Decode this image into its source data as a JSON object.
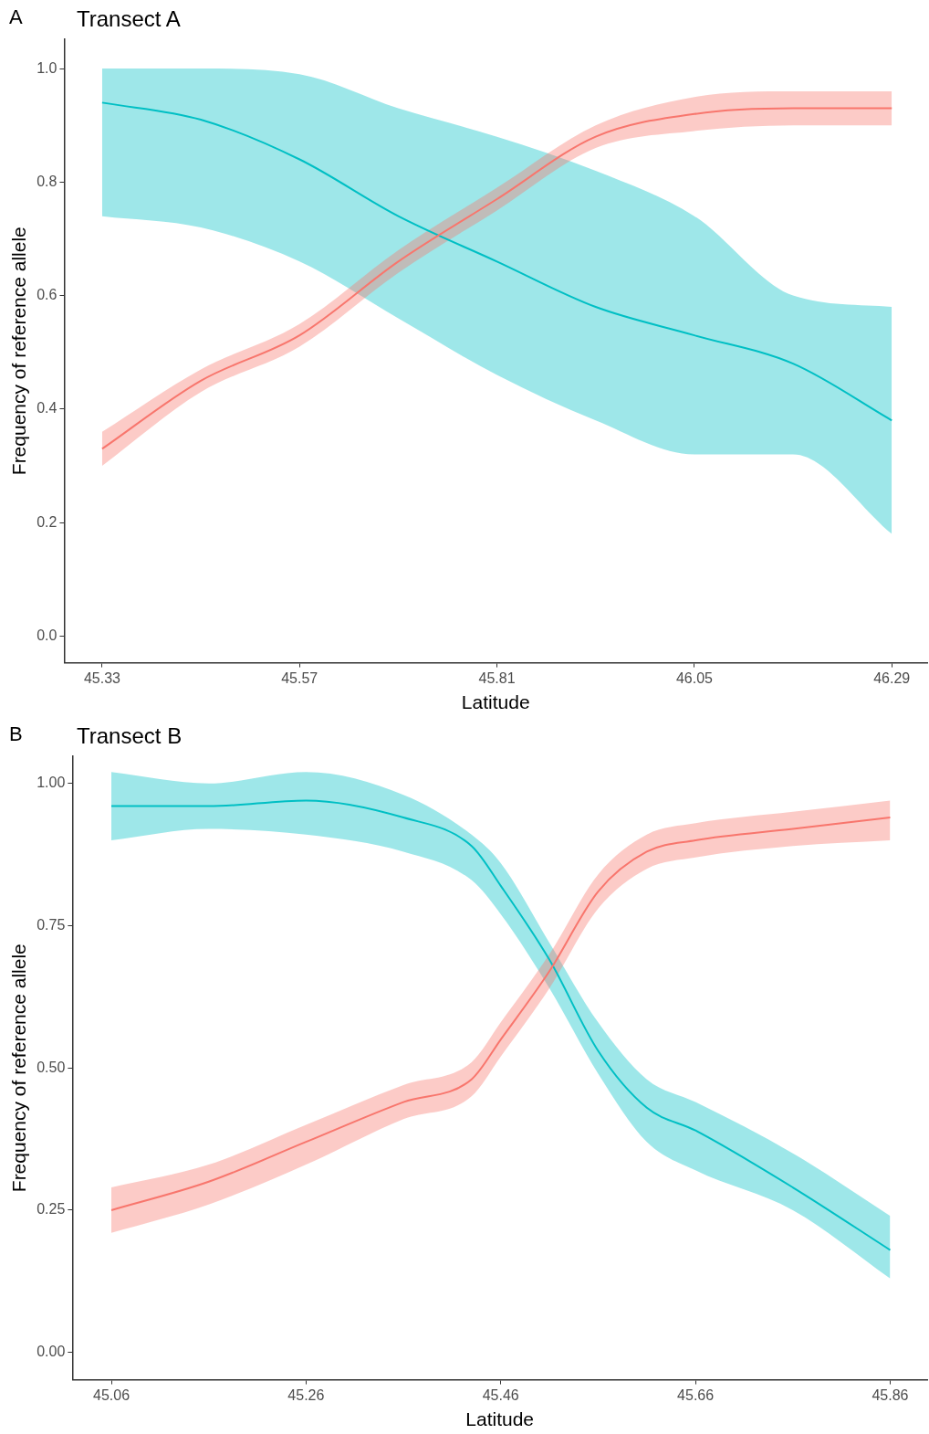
{
  "chart_data": [
    {
      "type": "line",
      "title": "Transect A",
      "xlabel": "Latitude",
      "ylabel": "Frequency of reference allele",
      "annotations": [
        "A"
      ],
      "grid": false,
      "legend": false,
      "xlim": [
        45.284,
        46.333
      ],
      "ylim": [
        -0.047,
        1.052
      ],
      "xticks": [
        45.33,
        45.57,
        45.81,
        46.05,
        46.29
      ],
      "yticks": [
        {
          "value": 0,
          "label": "0.0"
        },
        0.2,
        0.4,
        0.6,
        0.8,
        {
          "value": 1,
          "label": "1.0"
        }
      ],
      "x": [
        45.33,
        45.45,
        45.57,
        45.69,
        45.81,
        45.93,
        46.05,
        46.17,
        46.29
      ],
      "series": [
        {
          "color": "#f8766d",
          "values": [
            0.33,
            0.45,
            0.53,
            0.66,
            0.77,
            0.88,
            0.92,
            0.93,
            0.93
          ],
          "lower": [
            0.3,
            0.43,
            0.51,
            0.64,
            0.75,
            0.86,
            0.89,
            0.9,
            0.9
          ],
          "upper": [
            0.36,
            0.47,
            0.55,
            0.68,
            0.79,
            0.9,
            0.95,
            0.96,
            0.96
          ]
        },
        {
          "color": "#00bfc4",
          "values": [
            0.94,
            0.91,
            0.84,
            0.74,
            0.66,
            0.58,
            0.53,
            0.48,
            0.38
          ],
          "lower": [
            0.74,
            0.72,
            0.66,
            0.56,
            0.46,
            0.38,
            0.32,
            0.32,
            0.18
          ],
          "upper": [
            1,
            1,
            0.99,
            0.93,
            0.88,
            0.82,
            0.74,
            0.6,
            0.58
          ]
        }
      ]
    },
    {
      "type": "line",
      "title": "Transect B",
      "xlabel": "Latitude",
      "ylabel": "Frequency of reference allele",
      "annotations": [
        "B"
      ],
      "grid": false,
      "legend": false,
      "xlim": [
        45.02,
        45.898
      ],
      "ylim": [
        -0.048,
        1.048
      ],
      "xticks": [
        45.06,
        45.26,
        45.46,
        45.66,
        45.86
      ],
      "yticks": [
        {
          "value": 0,
          "label": "0.00"
        },
        0.25,
        {
          "value": 0.5,
          "label": "0.50"
        },
        0.75,
        {
          "value": 1,
          "label": "1.00"
        }
      ],
      "x": [
        45.06,
        45.16,
        45.26,
        45.36,
        45.43,
        45.46,
        45.51,
        45.56,
        45.61,
        45.66,
        45.76,
        45.86
      ],
      "series": [
        {
          "color": "#f8766d",
          "values": [
            0.25,
            0.3,
            0.37,
            0.44,
            0.48,
            0.55,
            0.67,
            0.81,
            0.88,
            0.9,
            0.92,
            0.94
          ],
          "lower": [
            0.21,
            0.26,
            0.33,
            0.41,
            0.45,
            0.52,
            0.64,
            0.78,
            0.85,
            0.87,
            0.89,
            0.9
          ],
          "upper": [
            0.29,
            0.33,
            0.4,
            0.47,
            0.51,
            0.58,
            0.7,
            0.84,
            0.91,
            0.93,
            0.95,
            0.97
          ]
        },
        {
          "color": "#00bfc4",
          "values": [
            0.96,
            0.96,
            0.97,
            0.94,
            0.89,
            0.82,
            0.69,
            0.53,
            0.43,
            0.39,
            0.29,
            0.18
          ],
          "lower": [
            0.9,
            0.92,
            0.91,
            0.88,
            0.83,
            0.77,
            0.64,
            0.49,
            0.37,
            0.32,
            0.25,
            0.13
          ],
          "upper": [
            1.02,
            1,
            1.02,
            0.98,
            0.91,
            0.86,
            0.72,
            0.58,
            0.48,
            0.44,
            0.35,
            0.24
          ]
        }
      ]
    }
  ]
}
